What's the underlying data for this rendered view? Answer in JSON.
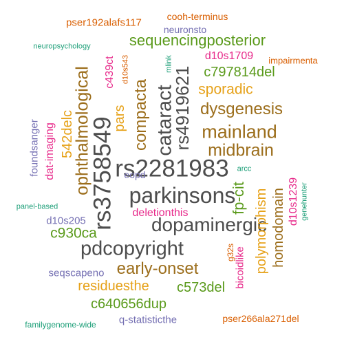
{
  "palette": {
    "dark": "#4d4d4d",
    "brown": "#9c6e1c",
    "gold": "#e6a118",
    "green": "#5a9a1b",
    "magenta": "#e7298a",
    "purple": "#7570b3",
    "teal": "#1b9e77",
    "orange": "#d95f02"
  },
  "words": [
    {
      "text": "rs2281983",
      "color": "#4d4d4d"
    },
    {
      "text": "parkinsons",
      "color": "#4d4d4d"
    },
    {
      "text": "dopaminergic",
      "color": "#4d4d4d"
    },
    {
      "text": "rs3758549",
      "color": "#4d4d4d"
    },
    {
      "text": "pdcopyright",
      "color": "#4d4d4d"
    },
    {
      "text": "cataract",
      "color": "#4d4d4d"
    },
    {
      "text": "rs4919621",
      "color": "#4d4d4d"
    },
    {
      "text": "mainland",
      "color": "#9c6e1c"
    },
    {
      "text": "midbrain",
      "color": "#9c6e1c"
    },
    {
      "text": "dysgenesis",
      "color": "#9c6e1c"
    },
    {
      "text": "ophthalmological",
      "color": "#9c6e1c"
    },
    {
      "text": "compacta",
      "color": "#9c6e1c"
    },
    {
      "text": "early-onset",
      "color": "#9c6e1c"
    },
    {
      "text": "homodomain",
      "color": "#9c6e1c"
    },
    {
      "text": "sequencingposterior",
      "color": "#5a9a1b"
    },
    {
      "text": "c797814del",
      "color": "#5a9a1b"
    },
    {
      "text": "fp-cit",
      "color": "#5a9a1b"
    },
    {
      "text": "c930ca",
      "color": "#5a9a1b"
    },
    {
      "text": "c573del",
      "color": "#5a9a1b"
    },
    {
      "text": "c640656dup",
      "color": "#5a9a1b"
    },
    {
      "text": "sporadic",
      "color": "#e6a118"
    },
    {
      "text": "pars",
      "color": "#e6a118"
    },
    {
      "text": "542delc",
      "color": "#e6a118"
    },
    {
      "text": "polymorphism",
      "color": "#e6a118"
    },
    {
      "text": "residuesthe",
      "color": "#e6a118"
    },
    {
      "text": "c439ct",
      "color": "#e7298a"
    },
    {
      "text": "d10s1709",
      "color": "#e7298a"
    },
    {
      "text": "dat-imaging",
      "color": "#e7298a"
    },
    {
      "text": "deletionthis",
      "color": "#e7298a"
    },
    {
      "text": "d10s1239",
      "color": "#e7298a"
    },
    {
      "text": "bicoidlike",
      "color": "#e7298a"
    },
    {
      "text": "neuronsto",
      "color": "#7570b3"
    },
    {
      "text": "foundsanger",
      "color": "#7570b3"
    },
    {
      "text": "eopd",
      "color": "#7570b3"
    },
    {
      "text": "d10s205",
      "color": "#7570b3"
    },
    {
      "text": "seqscapeno",
      "color": "#7570b3"
    },
    {
      "text": "q-statisticthe",
      "color": "#7570b3"
    },
    {
      "text": "pser192alafs117",
      "color": "#d95f02"
    },
    {
      "text": "cooh-terminus",
      "color": "#d95f02"
    },
    {
      "text": "impairmenta",
      "color": "#d95f02"
    },
    {
      "text": "d10s543",
      "color": "#d95f02"
    },
    {
      "text": "g32s",
      "color": "#d95f02"
    },
    {
      "text": "pser266ala271del",
      "color": "#d95f02"
    },
    {
      "text": "neuropsychology",
      "color": "#1b9e77"
    },
    {
      "text": "mlink",
      "color": "#1b9e77"
    },
    {
      "text": "arcc",
      "color": "#1b9e77"
    },
    {
      "text": "genehunter",
      "color": "#1b9e77"
    },
    {
      "text": "panel-based",
      "color": "#1b9e77"
    },
    {
      "text": "familygenome-wide",
      "color": "#1b9e77"
    }
  ]
}
